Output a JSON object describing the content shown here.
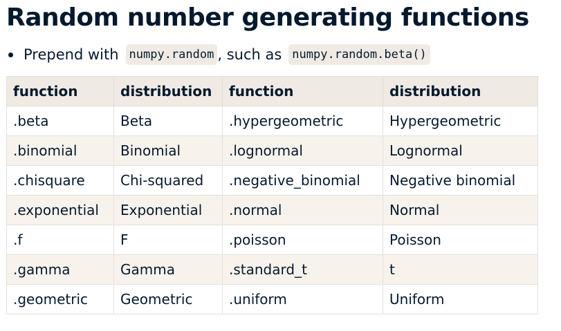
{
  "slide": {
    "title": "Random number generating functions",
    "bullet": {
      "prefix": "Prepend with",
      "code1": "numpy.random",
      "middle": ", such as",
      "code2": "numpy.random.beta()"
    }
  },
  "table": {
    "headers": [
      "function",
      "distribution",
      "function",
      "distribution"
    ],
    "rows": [
      [
        ".beta",
        "Beta",
        ".hypergeometric",
        "Hypergeometric"
      ],
      [
        ".binomial",
        "Binomial",
        ".lognormal",
        "Lognormal"
      ],
      [
        ".chisquare",
        "Chi-squared",
        ".negative_binomial",
        "Negative binomial"
      ],
      [
        ".exponential",
        "Exponential",
        ".normal",
        "Normal"
      ],
      [
        ".f",
        "F",
        ".poisson",
        "Poisson"
      ],
      [
        ".gamma",
        "Gamma",
        ".standard_t",
        "t"
      ],
      [
        ".geometric",
        "Geometric",
        ".uniform",
        "Uniform"
      ]
    ]
  }
}
